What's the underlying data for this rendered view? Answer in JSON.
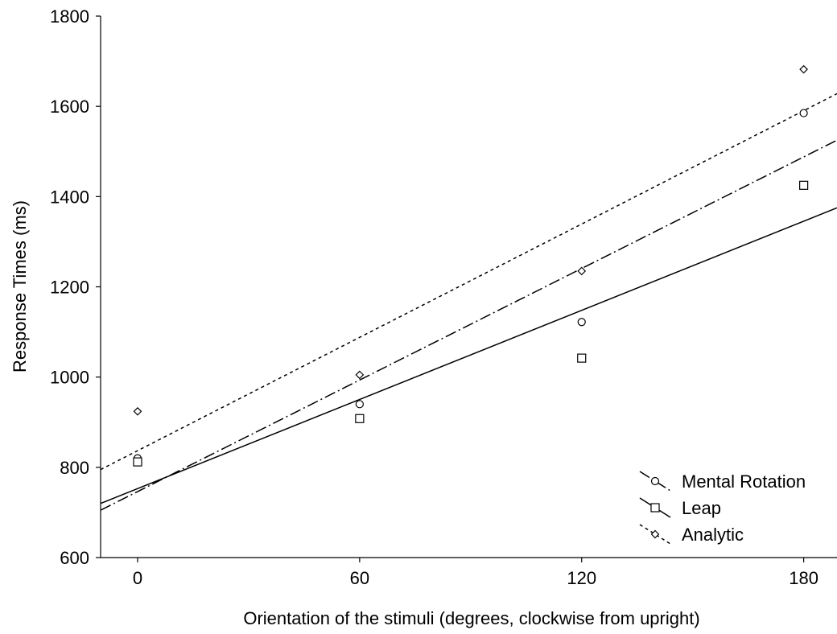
{
  "chart_data": {
    "type": "scatter",
    "title": "",
    "xlabel": "Orientation of the stimuli (degrees, clockwise from upright)",
    "ylabel": "Response Times (ms)",
    "xlim": [
      -10,
      189
    ],
    "ylim": [
      600,
      1800
    ],
    "x_ticks": [
      0,
      60,
      120,
      180
    ],
    "y_ticks": [
      600,
      800,
      1000,
      1200,
      1400,
      1600,
      1800
    ],
    "x_tick_labels": [
      "0",
      "60",
      "120",
      "180"
    ],
    "y_tick_labels": [
      "600",
      "800",
      "1000",
      "1200",
      "1400",
      "1600",
      "1800"
    ],
    "grid": false,
    "legend_position": "bottom-right",
    "series": [
      {
        "name": "Mental Rotation",
        "marker": "circle",
        "line_style": "dash-dot",
        "x": [
          0,
          60,
          120,
          180
        ],
        "y": [
          820,
          940,
          1122,
          1585
        ],
        "fit": {
          "x": [
            -10,
            189
          ],
          "y": [
            705,
            1525
          ]
        }
      },
      {
        "name": "Leap",
        "marker": "square",
        "line_style": "solid",
        "x": [
          0,
          60,
          120,
          180
        ],
        "y": [
          812,
          908,
          1042,
          1425
        ],
        "fit": {
          "x": [
            -10,
            189
          ],
          "y": [
            720,
            1375
          ]
        }
      },
      {
        "name": "Analytic",
        "marker": "diamond",
        "line_style": "dotted",
        "x": [
          0,
          60,
          120,
          180
        ],
        "y": [
          924,
          1005,
          1235,
          1682
        ],
        "fit": {
          "x": [
            -10,
            189
          ],
          "y": [
            795,
            1628
          ]
        }
      }
    ]
  }
}
